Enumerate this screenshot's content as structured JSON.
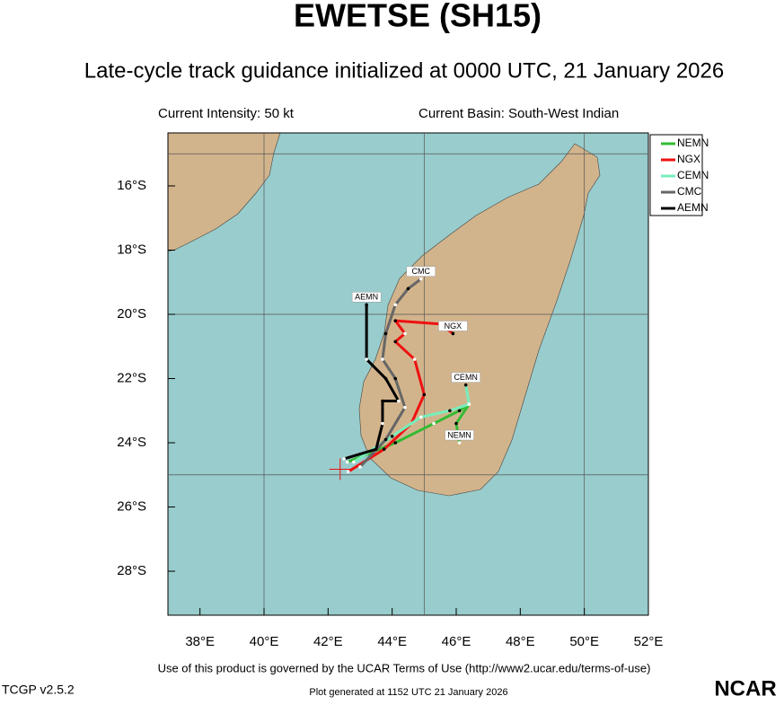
{
  "chart_data": {
    "type": "line",
    "title": "EWETSE (SH15)",
    "subtitle": "Late-cycle track guidance initialized at 0000 UTC, 21 January 2026",
    "intensity": "Current Intensity: 50 kt",
    "basin": "Current Basin: South-West Indian",
    "xlim": [
      37,
      52
    ],
    "ylim": [
      -29.37,
      -14.35
    ],
    "xticks": [
      {
        "value": 38,
        "label": "38°E"
      },
      {
        "value": 40,
        "label": "40°E"
      },
      {
        "value": 42,
        "label": "42°E"
      },
      {
        "value": 44,
        "label": "44°E"
      },
      {
        "value": 46,
        "label": "46°E"
      },
      {
        "value": 48,
        "label": "48°E"
      },
      {
        "value": 50,
        "label": "50°E"
      },
      {
        "value": 52,
        "label": "52°E"
      }
    ],
    "yticks": [
      {
        "value": -16,
        "label": "16°S"
      },
      {
        "value": -18,
        "label": "18°S"
      },
      {
        "value": -20,
        "label": "20°S"
      },
      {
        "value": -22,
        "label": "22°S"
      },
      {
        "value": -24,
        "label": "24°S"
      },
      {
        "value": -26,
        "label": "26°S"
      },
      {
        "value": -28,
        "label": "28°S"
      }
    ],
    "grid_x": [
      40,
      45,
      50
    ],
    "grid_y": [
      -15,
      -20,
      -25
    ],
    "legend": "upper right",
    "series": [
      {
        "name": "NEMN",
        "color": "#33bb33",
        "x": [
          42.6,
          44.1,
          45.3,
          46.1,
          46.4,
          46.0,
          46.1
        ],
        "values": [
          -24.6,
          -24.0,
          -23.4,
          -23.0,
          -22.8,
          -23.4,
          -24.0
        ]
      },
      {
        "name": "NGX",
        "color": "#ee1111",
        "x": [
          42.63,
          43.75,
          44.6,
          45.0,
          44.7,
          44.1,
          44.4,
          44.1,
          45.5,
          45.9
        ],
        "values": [
          -24.9,
          -24.2,
          -23.4,
          -22.5,
          -21.4,
          -20.85,
          -20.6,
          -20.2,
          -20.3,
          -20.6
        ]
      },
      {
        "name": "CEMN",
        "color": "#77eebb",
        "x": [
          42.8,
          44.0,
          44.9,
          45.8,
          46.4,
          46.3
        ],
        "values": [
          -24.6,
          -23.8,
          -23.2,
          -23.0,
          -22.8,
          -22.2
        ]
      },
      {
        "name": "CMC",
        "color": "#666666",
        "x": [
          43.0,
          43.8,
          44.4,
          44.1,
          43.7,
          43.8,
          44.1,
          44.5,
          44.9
        ],
        "values": [
          -24.75,
          -23.9,
          -22.9,
          -22.0,
          -21.4,
          -20.6,
          -19.7,
          -19.2,
          -18.9
        ]
      },
      {
        "name": "AEMN",
        "color": "#000000",
        "x": [
          42.5,
          43.5,
          43.7,
          43.7,
          44.2,
          43.8,
          43.2,
          43.2
        ],
        "values": [
          -24.5,
          -24.2,
          -23.4,
          -22.7,
          -22.7,
          -22.0,
          -21.4,
          -19.7
        ]
      }
    ],
    "terms": "Use of this product is governed by the UCAR Terms of Use (http://www2.ucar.edu/terms-of-use)",
    "version": "TCGP v2.5.2",
    "generated": "Plot generated at 1152 UTC   21 January 2026",
    "logo": "NCAR"
  }
}
